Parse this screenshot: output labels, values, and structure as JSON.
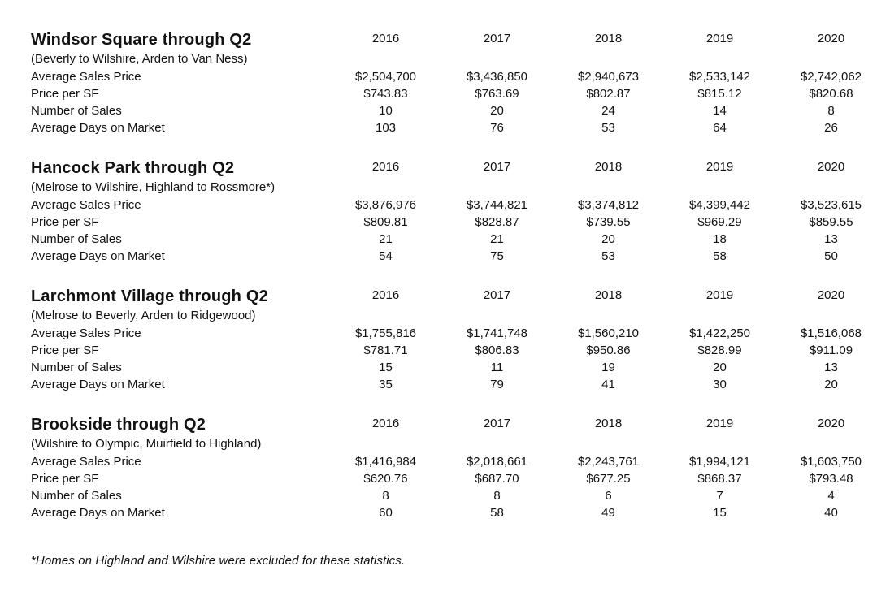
{
  "years": [
    "2016",
    "2017",
    "2018",
    "2019",
    "2020"
  ],
  "sections": [
    {
      "title": "Windsor Square through Q2",
      "subtitle": "(Beverly to Wilshire, Arden to Van Ness)",
      "rows": [
        {
          "label": "Average Sales Price",
          "values": [
            "$2,504,700",
            "$3,436,850",
            "$2,940,673",
            "$2,533,142",
            "$2,742,062"
          ]
        },
        {
          "label": "Price per SF",
          "values": [
            "$743.83",
            "$763.69",
            "$802.87",
            "$815.12",
            "$820.68"
          ]
        },
        {
          "label": "Number of Sales",
          "values": [
            "10",
            "20",
            "24",
            "14",
            "8"
          ]
        },
        {
          "label": "Average Days on Market",
          "values": [
            "103",
            "76",
            "53",
            "64",
            "26"
          ]
        }
      ]
    },
    {
      "title": "Hancock Park through Q2",
      "subtitle": "(Melrose to Wilshire, Highland to Rossmore*)",
      "rows": [
        {
          "label": "Average Sales Price",
          "values": [
            "$3,876,976",
            "$3,744,821",
            "$3,374,812",
            "$4,399,442",
            "$3,523,615"
          ]
        },
        {
          "label": "Price per SF",
          "values": [
            "$809.81",
            "$828.87",
            "$739.55",
            "$969.29",
            "$859.55"
          ]
        },
        {
          "label": "Number of Sales",
          "values": [
            "21",
            "21",
            "20",
            "18",
            "13"
          ]
        },
        {
          "label": "Average Days on Market",
          "values": [
            "54",
            "75",
            "53",
            "58",
            "50"
          ]
        }
      ]
    },
    {
      "title": "Larchmont Village through Q2",
      "subtitle": "(Melrose to Beverly, Arden to Ridgewood)",
      "rows": [
        {
          "label": "Average Sales Price",
          "values": [
            "$1,755,816",
            "$1,741,748",
            "$1,560,210",
            "$1,422,250",
            "$1,516,068"
          ]
        },
        {
          "label": "Price per SF",
          "values": [
            "$781.71",
            "$806.83",
            "$950.86",
            "$828.99",
            "$911.09"
          ]
        },
        {
          "label": "Number of Sales",
          "values": [
            "15",
            "11",
            "19",
            "20",
            "13"
          ]
        },
        {
          "label": "Average Days on Market",
          "values": [
            "35",
            "79",
            "41",
            "30",
            "20"
          ]
        }
      ]
    },
    {
      "title": "Brookside through Q2",
      "subtitle": "(Wilshire to Olympic, Muirfield to Highland)",
      "rows": [
        {
          "label": "Average Sales Price",
          "values": [
            "$1,416,984",
            "$2,018,661",
            "$2,243,761",
            "$1,994,121",
            "$1,603,750"
          ]
        },
        {
          "label": "Price per SF",
          "values": [
            "$620.76",
            "$687.70",
            "$677.25",
            "$868.37",
            "$793.48"
          ]
        },
        {
          "label": "Number of Sales",
          "values": [
            "8",
            "8",
            "6",
            "7",
            "4"
          ]
        },
        {
          "label": "Average Days on Market",
          "values": [
            "60",
            "58",
            "49",
            "15",
            "40"
          ]
        }
      ]
    }
  ],
  "footnote": "*Homes on Highland and Wilshire were excluded for these statistics."
}
